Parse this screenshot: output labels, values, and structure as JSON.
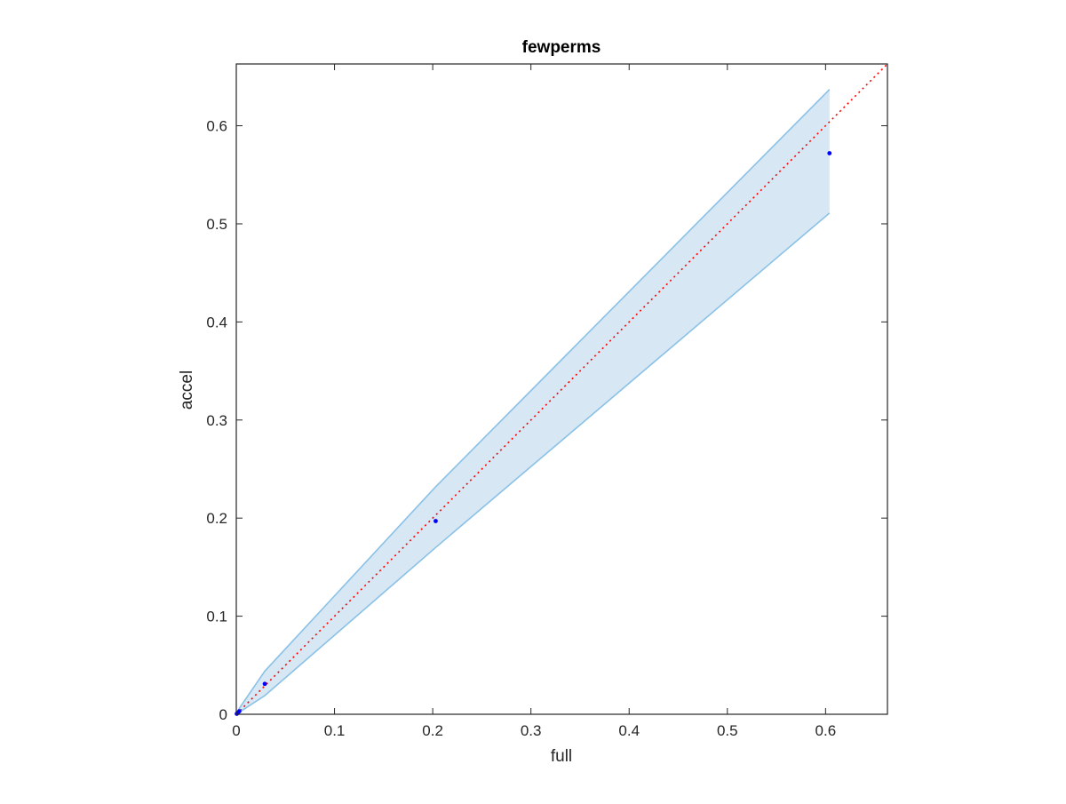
{
  "chart_data": {
    "type": "scatter",
    "title": "fewperms",
    "xlabel": "full",
    "ylabel": "accel",
    "xlim": [
      0,
      0.663
    ],
    "ylim": [
      0,
      0.663
    ],
    "xticks": [
      0,
      0.1,
      0.2,
      0.3,
      0.4,
      0.5,
      0.6
    ],
    "yticks": [
      0,
      0.1,
      0.2,
      0.3,
      0.4,
      0.5,
      0.6
    ],
    "xtick_labels": [
      "0",
      "0.1",
      "0.2",
      "0.3",
      "0.4",
      "0.5",
      "0.6"
    ],
    "ytick_labels": [
      "0",
      "0.1",
      "0.2",
      "0.3",
      "0.4",
      "0.5",
      "0.6"
    ],
    "grid": false,
    "points": {
      "x": [
        0.0005,
        0.0015,
        0.003,
        0.029,
        0.203,
        0.604
      ],
      "y": [
        0.0005,
        0.0015,
        0.003,
        0.031,
        0.197,
        0.572
      ],
      "color": "#0000ff"
    },
    "band": {
      "x": [
        0,
        0.003,
        0.029,
        0.203,
        0.604
      ],
      "upper": [
        0,
        0.006,
        0.044,
        0.232,
        0.637
      ],
      "lower": [
        0,
        0.002,
        0.019,
        0.17,
        0.511
      ],
      "fill_color": "#d7e7f4",
      "edge_color": "#8ac1e6"
    },
    "reference_line": {
      "x": [
        0,
        0.663
      ],
      "y": [
        0,
        0.663
      ],
      "color": "#ff0000",
      "style": "dotted"
    }
  }
}
